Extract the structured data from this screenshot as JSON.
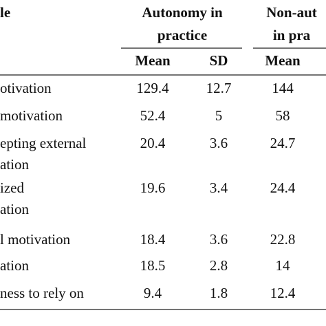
{
  "table": {
    "header": {
      "variable": "le",
      "groups": [
        [
          "Autonomy in",
          "practice"
        ],
        [
          "Non-aut",
          "in pra"
        ]
      ],
      "columns": [
        "Mean",
        "SD",
        "Mean"
      ]
    },
    "rows": [
      {
        "label": [
          "otivation"
        ],
        "cells": [
          "129.4",
          "12.7",
          "144"
        ]
      },
      {
        "label": [
          "motivation"
        ],
        "cells": [
          "52.4",
          "5",
          "58"
        ]
      },
      {
        "label": [
          "epting external",
          "ation"
        ],
        "cells": [
          "20.4",
          "3.6",
          "24.7"
        ]
      },
      {
        "label": [
          "ized",
          "ation"
        ],
        "cells": [
          "19.6",
          "3.4",
          "24.4"
        ]
      },
      {
        "label": [
          "l motivation"
        ],
        "cells": [
          "18.4",
          "3.6",
          "22.8"
        ]
      },
      {
        "label": [
          "ation"
        ],
        "cells": [
          "18.5",
          "2.8",
          "14"
        ]
      },
      {
        "label": [
          "ness to rely on"
        ],
        "cells": [
          "9.4",
          "1.8",
          "12.4"
        ]
      }
    ]
  }
}
